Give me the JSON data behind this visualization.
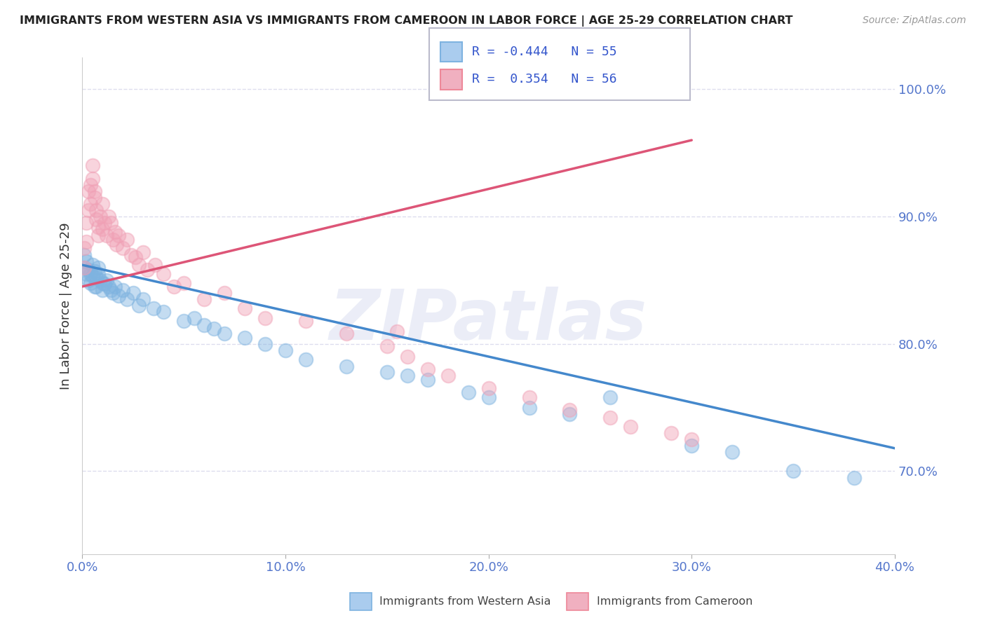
{
  "title": "IMMIGRANTS FROM WESTERN ASIA VS IMMIGRANTS FROM CAMEROON IN LABOR FORCE | AGE 25-29 CORRELATION CHART",
  "source": "Source: ZipAtlas.com",
  "ylabel": "In Labor Force | Age 25-29",
  "watermark": "ZIPatlas",
  "xlim": [
    0.0,
    0.4
  ],
  "ylim": [
    0.635,
    1.025
  ],
  "yticks": [
    0.7,
    0.8,
    0.9,
    1.0
  ],
  "ytick_labels": [
    "70.0%",
    "80.0%",
    "90.0%",
    "100.0%"
  ],
  "xticks": [
    0.0,
    0.1,
    0.2,
    0.3,
    0.4
  ],
  "xtick_labels": [
    "0.0%",
    "10.0%",
    "20.0%",
    "30.0%",
    "40.0%"
  ],
  "series_blue": {
    "label": "Immigrants from Western Asia",
    "color": "#7eb3e0",
    "R": -0.444,
    "N": 55,
    "x": [
      0.001,
      0.001,
      0.002,
      0.002,
      0.003,
      0.003,
      0.004,
      0.004,
      0.005,
      0.005,
      0.006,
      0.006,
      0.007,
      0.007,
      0.008,
      0.008,
      0.009,
      0.01,
      0.01,
      0.011,
      0.012,
      0.013,
      0.014,
      0.015,
      0.016,
      0.018,
      0.02,
      0.022,
      0.025,
      0.028,
      0.03,
      0.035,
      0.04,
      0.05,
      0.055,
      0.06,
      0.065,
      0.07,
      0.08,
      0.09,
      0.1,
      0.11,
      0.13,
      0.15,
      0.16,
      0.17,
      0.19,
      0.2,
      0.22,
      0.24,
      0.26,
      0.3,
      0.32,
      0.35,
      0.38
    ],
    "y": [
      0.86,
      0.87,
      0.855,
      0.865,
      0.858,
      0.85,
      0.855,
      0.848,
      0.862,
      0.853,
      0.857,
      0.845,
      0.852,
      0.845,
      0.855,
      0.86,
      0.85,
      0.848,
      0.842,
      0.847,
      0.85,
      0.845,
      0.842,
      0.84,
      0.845,
      0.838,
      0.842,
      0.835,
      0.84,
      0.83,
      0.835,
      0.828,
      0.825,
      0.818,
      0.82,
      0.815,
      0.812,
      0.808,
      0.805,
      0.8,
      0.795,
      0.788,
      0.782,
      0.778,
      0.775,
      0.772,
      0.762,
      0.758,
      0.75,
      0.745,
      0.758,
      0.72,
      0.715,
      0.7,
      0.695
    ],
    "trend_x": [
      0.0,
      0.4
    ],
    "trend_y": [
      0.862,
      0.718
    ]
  },
  "series_pink": {
    "label": "Immigrants from Cameroon",
    "color": "#f0a0b5",
    "R": 0.354,
    "N": 56,
    "x": [
      0.001,
      0.001,
      0.002,
      0.002,
      0.003,
      0.003,
      0.004,
      0.004,
      0.005,
      0.005,
      0.006,
      0.006,
      0.007,
      0.007,
      0.008,
      0.008,
      0.009,
      0.01,
      0.01,
      0.011,
      0.012,
      0.013,
      0.014,
      0.015,
      0.016,
      0.017,
      0.018,
      0.02,
      0.022,
      0.024,
      0.026,
      0.028,
      0.03,
      0.032,
      0.036,
      0.04,
      0.045,
      0.05,
      0.06,
      0.07,
      0.08,
      0.09,
      0.11,
      0.13,
      0.15,
      0.155,
      0.16,
      0.17,
      0.18,
      0.2,
      0.22,
      0.24,
      0.26,
      0.27,
      0.29,
      0.3
    ],
    "y": [
      0.86,
      0.875,
      0.88,
      0.895,
      0.905,
      0.92,
      0.91,
      0.925,
      0.93,
      0.94,
      0.915,
      0.92,
      0.905,
      0.898,
      0.892,
      0.885,
      0.9,
      0.89,
      0.91,
      0.895,
      0.885,
      0.9,
      0.895,
      0.882,
      0.888,
      0.878,
      0.885,
      0.875,
      0.882,
      0.87,
      0.868,
      0.862,
      0.872,
      0.858,
      0.862,
      0.855,
      0.845,
      0.848,
      0.835,
      0.84,
      0.828,
      0.82,
      0.818,
      0.808,
      0.798,
      0.81,
      0.79,
      0.78,
      0.775,
      0.765,
      0.758,
      0.748,
      0.742,
      0.735,
      0.73,
      0.725
    ],
    "trend_x": [
      0.0,
      0.3
    ],
    "trend_y": [
      0.845,
      0.96
    ]
  },
  "r_color": "#3355cc",
  "n_color": "#3355cc",
  "grid_color": "#ddddee",
  "background_color": "#ffffff",
  "legend_R_blue": "-0.444",
  "legend_N_blue": "55",
  "legend_R_pink": "0.354",
  "legend_N_pink": "56"
}
